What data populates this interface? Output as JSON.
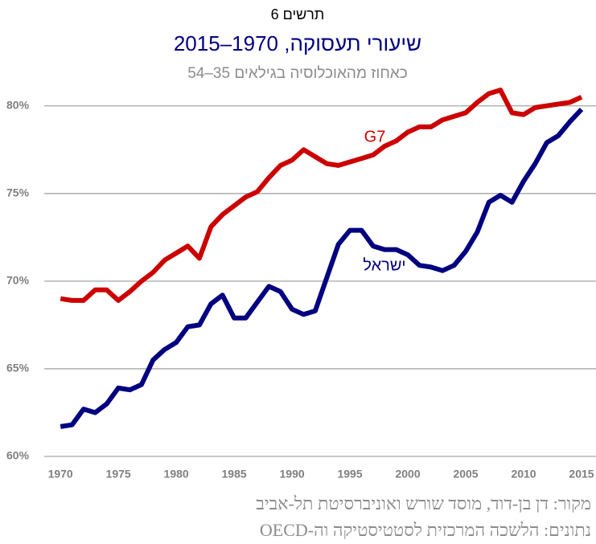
{
  "chart_data": {
    "type": "line",
    "label": "תרשים 6",
    "title": "שיעורי תעסוקה, 1970–2015",
    "subtitle": "כאחוז מהאוכלוסיה בגילאים 35–54",
    "source": "מקור:  דן בן-דוד, מוסד שורש ואוניברסיטת תל-אביב",
    "data_note": "נתונים: הלשכה המרכזית לסטטיסטיקה וה-OECD",
    "x": [
      1970,
      1971,
      1972,
      1973,
      1974,
      1975,
      1976,
      1977,
      1978,
      1979,
      1980,
      1981,
      1982,
      1983,
      1984,
      1985,
      1986,
      1987,
      1988,
      1989,
      1990,
      1991,
      1992,
      1993,
      1994,
      1995,
      1996,
      1997,
      1998,
      1999,
      2000,
      2001,
      2002,
      2003,
      2004,
      2005,
      2006,
      2007,
      2008,
      2009,
      2010,
      2011,
      2012,
      2013,
      2014,
      2015
    ],
    "series": [
      {
        "name": "G7",
        "color": "#cc0000",
        "values": [
          69.0,
          68.9,
          68.9,
          69.5,
          69.5,
          68.9,
          69.4,
          70.0,
          70.5,
          71.2,
          71.6,
          72.0,
          71.3,
          73.1,
          73.8,
          74.3,
          74.8,
          75.1,
          75.9,
          76.6,
          76.9,
          77.5,
          77.1,
          76.7,
          76.6,
          76.8,
          77.0,
          77.2,
          77.7,
          78.0,
          78.5,
          78.8,
          78.8,
          79.2,
          79.4,
          79.6,
          80.2,
          80.7,
          80.9,
          79.6,
          79.5,
          79.9,
          80.0,
          80.1,
          80.2,
          80.5
        ]
      },
      {
        "name": "ישראל",
        "color": "#000080",
        "values": [
          61.7,
          61.8,
          62.7,
          62.5,
          63.0,
          63.9,
          63.8,
          64.1,
          65.5,
          66.1,
          66.5,
          67.4,
          67.5,
          68.7,
          69.2,
          67.9,
          67.9,
          68.8,
          69.7,
          69.4,
          68.4,
          68.1,
          68.3,
          70.2,
          72.1,
          72.9,
          72.9,
          72.0,
          71.8,
          71.8,
          71.5,
          70.9,
          70.8,
          70.6,
          70.9,
          71.7,
          72.8,
          74.5,
          74.9,
          74.5,
          75.7,
          76.7,
          77.9,
          78.3,
          79.1,
          79.8
        ]
      }
    ],
    "xlim": [
      1968.6,
      2016.25
    ],
    "xticks": [
      1970,
      1975,
      1980,
      1985,
      1990,
      1995,
      2000,
      2005,
      2010,
      2015
    ],
    "ylim": [
      60,
      81.5
    ],
    "yticks": [
      {
        "value": 60,
        "label": "60%"
      },
      {
        "value": 65,
        "label": "65%"
      },
      {
        "value": 70,
        "label": "70%"
      },
      {
        "value": 75,
        "label": "75%"
      },
      {
        "value": 80,
        "label": "80%"
      }
    ],
    "grid": true
  }
}
